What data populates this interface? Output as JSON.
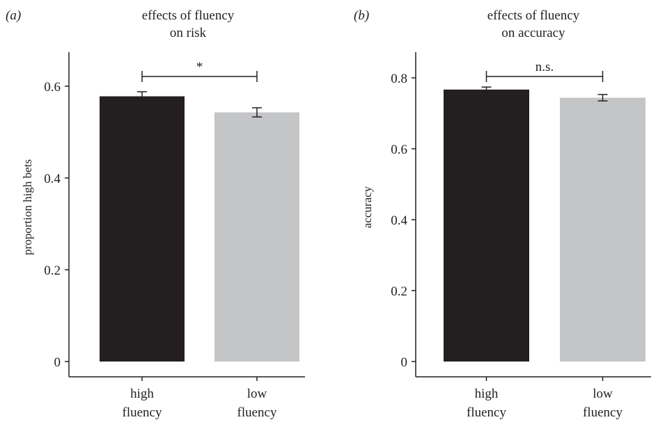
{
  "chart_data": [
    {
      "type": "bar",
      "panel_label": "(a)",
      "title_lines": [
        "effects of fluency",
        "on risk"
      ],
      "ylabel": "proportion high bets",
      "ylim": [
        0,
        0.66
      ],
      "yticks": [
        0,
        0.2,
        0.4,
        0.6
      ],
      "ytick_labels": [
        "0",
        "0.2",
        "0.4",
        "0.6"
      ],
      "categories": [
        [
          "high",
          "fluency"
        ],
        [
          "low",
          "fluency"
        ]
      ],
      "values": [
        0.578,
        0.543
      ],
      "errors": [
        0.01,
        0.01
      ],
      "colors": [
        "#231f20",
        "#c4c5c7"
      ],
      "significance": {
        "label": "*",
        "between": [
          0,
          1
        ]
      }
    },
    {
      "type": "bar",
      "panel_label": "(b)",
      "title_lines": [
        "effects of fluency",
        "on accuracy"
      ],
      "ylabel": "accuracy",
      "ylim": [
        0,
        0.875
      ],
      "yticks": [
        0,
        0.2,
        0.4,
        0.6,
        0.8
      ],
      "ytick_labels": [
        "0",
        "0.2",
        "0.4",
        "0.6",
        "0.8"
      ],
      "categories": [
        [
          "high",
          "fluency"
        ],
        [
          "low",
          "fluency"
        ]
      ],
      "values": [
        0.767,
        0.744
      ],
      "errors": [
        0.007,
        0.009
      ],
      "colors": [
        "#231f20",
        "#c4c5c7"
      ],
      "significance": {
        "label": "n.s.",
        "between": [
          0,
          1
        ]
      }
    }
  ]
}
